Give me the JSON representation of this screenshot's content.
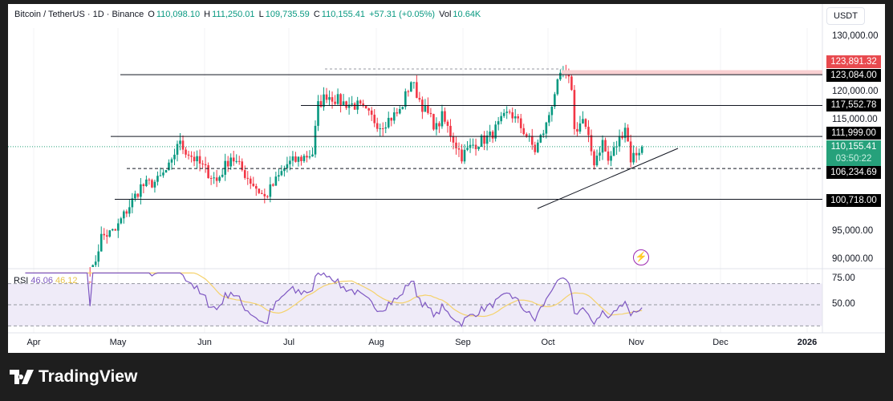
{
  "legend": {
    "symbol": "Bitcoin / TetherUS · 1D · Binance",
    "o_label": "O",
    "open": "110,098.10",
    "h_label": "H",
    "high": "111,250.01",
    "l_label": "L",
    "low": "109,735.59",
    "c_label": "C",
    "close": "110,155.41",
    "change": "+57.31 (+0.05%)",
    "vol_label": "Vol",
    "volume": "10.64K"
  },
  "unit": "USDT",
  "price_ticks": [
    "130,000.00",
    "120,000.00",
    "115,000.00",
    "95,000.00",
    "90,000.00"
  ],
  "levels": {
    "red": "123,891.32",
    "l1": "123,084.00",
    "l2": "117,552.78",
    "l3": "111,999.00",
    "current": "110,155.41",
    "countdown": "03:50:22",
    "l4": "106,234.69",
    "l5": "100,718.00"
  },
  "rsi": {
    "label": "RSI",
    "value": "46.06",
    "ma": "46.12",
    "ticks": [
      "75.00",
      "50.00"
    ]
  },
  "time_axis": [
    "Apr",
    "May",
    "Jun",
    "Jul",
    "Aug",
    "Sep",
    "Oct",
    "Nov",
    "Dec",
    "2026"
  ],
  "brand": "TradingView",
  "colors": {
    "up": "#089981",
    "down": "#f23645",
    "rsi": "#7e57c2",
    "rsi_ma": "#f5d26b",
    "current": "#26a17b"
  },
  "chart_data": {
    "type": "candlestick",
    "note": "approximate daily closes, day offset from Apr 1",
    "keypoints": [
      [
        -20,
        83000
      ],
      [
        20,
        86000
      ],
      [
        21,
        88000
      ],
      [
        24,
        94000
      ],
      [
        29,
        95000
      ],
      [
        31,
        97000
      ],
      [
        38,
        103000
      ],
      [
        44,
        104000
      ],
      [
        49,
        107000
      ],
      [
        51,
        111000
      ],
      [
        57,
        108000
      ],
      [
        65,
        104000
      ],
      [
        70,
        108500
      ],
      [
        77,
        104000
      ],
      [
        82,
        101000
      ],
      [
        90,
        107000
      ],
      [
        99,
        109000
      ],
      [
        101,
        117500
      ],
      [
        104,
        119500
      ],
      [
        110,
        118000
      ],
      [
        115,
        117500
      ],
      [
        123,
        114000
      ],
      [
        130,
        116500
      ],
      [
        134,
        122000
      ],
      [
        138,
        117500
      ],
      [
        143,
        113500
      ],
      [
        145,
        115500
      ],
      [
        152,
        108500
      ],
      [
        156,
        110500
      ],
      [
        162,
        112000
      ],
      [
        169,
        116500
      ],
      [
        174,
        113000
      ],
      [
        178,
        109500
      ],
      [
        182,
        114000
      ],
      [
        185,
        120000
      ],
      [
        188,
        123500
      ],
      [
        191,
        121000
      ],
      [
        192,
        113000
      ],
      [
        195,
        115000
      ],
      [
        199,
        107500
      ],
      [
        202,
        111000
      ],
      [
        204,
        107500
      ],
      [
        208,
        111500
      ],
      [
        210,
        114000
      ],
      [
        212,
        108000
      ],
      [
        216,
        110155
      ]
    ],
    "price_range": [
      88000,
      133000
    ]
  }
}
